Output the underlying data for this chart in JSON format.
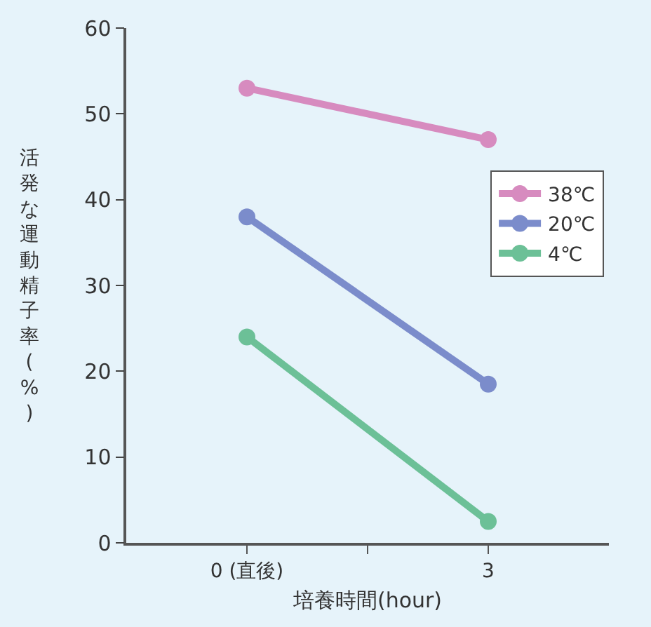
{
  "chart_data": {
    "type": "line",
    "xlabel": "培養時間(hour)",
    "ylabel": "活発な運動精子率(%)",
    "x": [
      0,
      3
    ],
    "xlim": [
      -1.5,
      4.5
    ],
    "xticks": [
      {
        "value": 0,
        "label": "0 (直後)"
      },
      {
        "value": 1.5,
        "label": null
      },
      3
    ],
    "series": [
      {
        "name": "38℃",
        "color": "#d78bbf",
        "values": [
          53,
          47
        ]
      },
      {
        "name": "20℃",
        "color": "#7b8ccb",
        "values": [
          38,
          18.5
        ]
      },
      {
        "name": "4℃",
        "color": "#6cc097",
        "values": [
          24,
          2.5
        ]
      }
    ],
    "ylim": [
      0,
      60
    ],
    "yticks": [
      0,
      10,
      20,
      30,
      40,
      50,
      60
    ],
    "grid": false,
    "legend": "right",
    "marker": "circle",
    "line_style": "solid"
  }
}
